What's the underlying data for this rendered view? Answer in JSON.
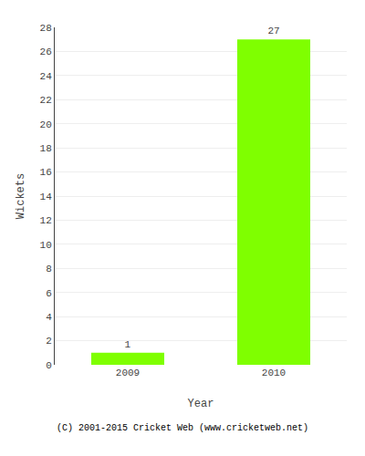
{
  "chart_data": {
    "type": "bar",
    "categories": [
      "2009",
      "2010"
    ],
    "values": [
      1,
      27
    ],
    "color": "#7fff00",
    "xlabel": "Year",
    "ylabel": "Wickets",
    "ylim": [
      0,
      28
    ],
    "yticks": [
      0,
      2,
      4,
      6,
      8,
      10,
      12,
      14,
      16,
      18,
      20,
      22,
      24,
      26,
      28
    ],
    "grid": true,
    "data_labels": true,
    "annotations": [
      "(C) 2001-2015 Cricket Web (www.cricketweb.net)"
    ]
  }
}
